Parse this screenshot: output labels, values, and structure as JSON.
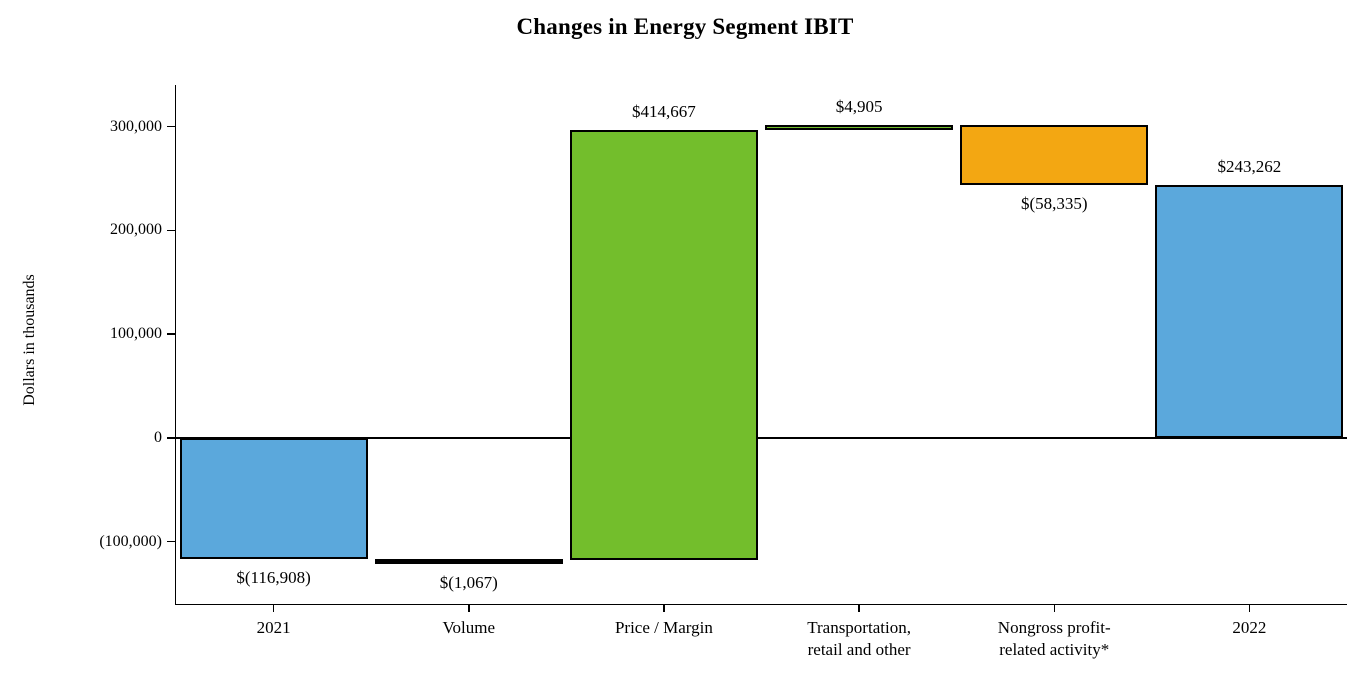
{
  "chart_data": {
    "type": "waterfall",
    "title": "Changes in Energy Segment IBIT",
    "ylabel": "Dollars in thousands",
    "ylim": [
      -160000,
      340000
    ],
    "grid": false,
    "legend": false,
    "yticks": [
      {
        "value": 300000,
        "label": "300,000"
      },
      {
        "value": 200000,
        "label": "200,000"
      },
      {
        "value": 100000,
        "label": "100,000"
      },
      {
        "value": 0,
        "label": "0"
      },
      {
        "value": -100000,
        "label": "(100,000)"
      }
    ],
    "bars": [
      {
        "category": "2021",
        "value": -116908,
        "start": 0,
        "end": -116908,
        "label": "$(116,908)",
        "label_pos": "below",
        "color": "#5BA8DC"
      },
      {
        "category": "Volume",
        "value": -1067,
        "start": -116908,
        "end": -117975,
        "label": "$(1,067)",
        "label_pos": "below",
        "color": "#000000"
      },
      {
        "category": "Price / Margin",
        "value": 414667,
        "start": -117975,
        "end": 296692,
        "label": "$414,667",
        "label_pos": "above",
        "color": "#73BE2C"
      },
      {
        "category": "Transportation,\nretail and other",
        "value": 4905,
        "start": 296692,
        "end": 301597,
        "label": "$4,905",
        "label_pos": "above",
        "color": "#73BE2C"
      },
      {
        "category": "Nongross profit-\nrelated activity*",
        "value": -58335,
        "start": 301597,
        "end": 243262,
        "label": "$(58,335)",
        "label_pos": "below",
        "color": "#F3A712"
      },
      {
        "category": "2022",
        "value": 243262,
        "start": 0,
        "end": 243262,
        "label": "$243,262",
        "label_pos": "above",
        "color": "#5BA8DC"
      }
    ],
    "colors": {
      "total_bars": "#5BA8DC",
      "increase_bars": "#73BE2C",
      "decrease_bar": "#F3A712",
      "axis": "#000000"
    }
  }
}
